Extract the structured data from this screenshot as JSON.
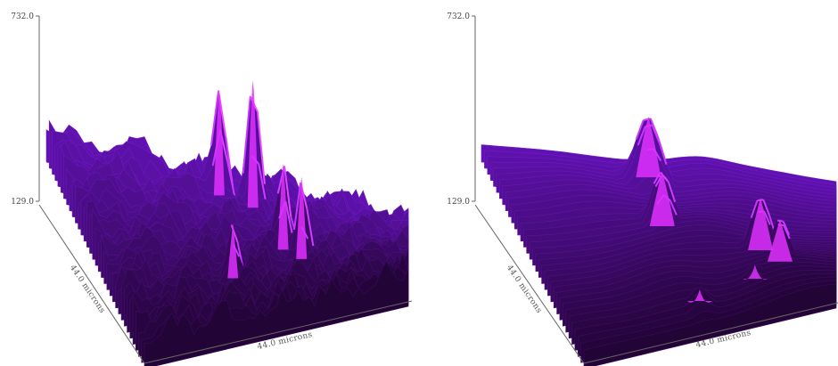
{
  "chart_data": [
    {
      "type": "surface",
      "panel": "left",
      "surface": "noisy",
      "zlim": [
        129.0,
        732.0
      ],
      "zticks": [
        "732.0",
        "129.0"
      ],
      "xlabel": "44.0 microns",
      "ylabel": "44.0 microns",
      "peaks": [
        {
          "x": 0.55,
          "y": 0.17,
          "z": 732.0
        },
        {
          "x": 0.46,
          "y": 0.12,
          "z": 640.0
        },
        {
          "x": 0.6,
          "y": 0.5,
          "z": 560.0
        },
        {
          "x": 0.65,
          "y": 0.58,
          "z": 545.0
        },
        {
          "x": 0.4,
          "y": 0.71,
          "z": 430.0
        }
      ]
    },
    {
      "type": "surface",
      "panel": "right",
      "surface": "smoothed",
      "zlim": [
        129.0,
        732.0
      ],
      "zticks": [
        "732.0",
        "129.0"
      ],
      "xlabel": "44.0 microns",
      "ylabel": "44.0 microns",
      "peaks": [
        {
          "x": 0.45,
          "y": 0.13,
          "z": 455.0
        },
        {
          "x": 0.44,
          "y": 0.43,
          "z": 430.0
        },
        {
          "x": 0.74,
          "y": 0.62,
          "z": 420.0
        },
        {
          "x": 0.8,
          "y": 0.72,
          "z": 380.0
        },
        {
          "x": 0.7,
          "y": 0.82,
          "z": 260.0
        },
        {
          "x": 0.48,
          "y": 0.9,
          "z": 250.0
        }
      ]
    }
  ]
}
